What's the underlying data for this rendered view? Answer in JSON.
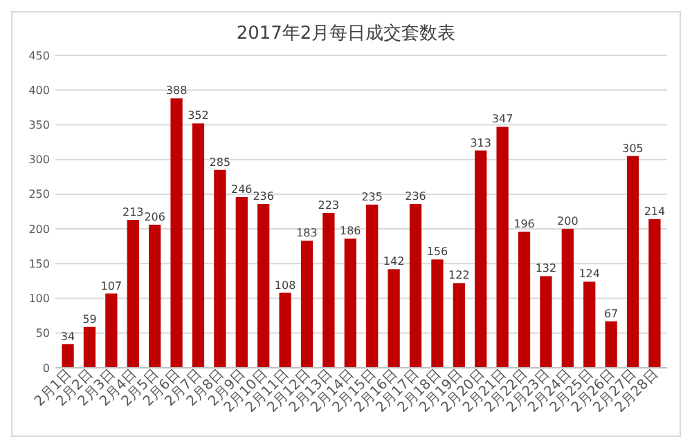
{
  "chart_data": {
    "type": "bar",
    "title": "2017年2月每日成交套数表",
    "categories": [
      "2月1日",
      "2月2日",
      "2月3日",
      "2月4日",
      "2月5日",
      "2月6日",
      "2月7日",
      "2月8日",
      "2月9日",
      "2月10日",
      "2月11日",
      "2月12日",
      "2月13日",
      "2月14日",
      "2月15日",
      "2月16日",
      "2月17日",
      "2月18日",
      "2月19日",
      "2月20日",
      "2月21日",
      "2月22日",
      "2月23日",
      "2月24日",
      "2月25日",
      "2月26日",
      "2月27日",
      "2月28日"
    ],
    "values": [
      34,
      59,
      107,
      213,
      206,
      388,
      352,
      285,
      246,
      236,
      108,
      183,
      223,
      186,
      235,
      142,
      236,
      156,
      122,
      313,
      347,
      196,
      132,
      200,
      124,
      67,
      305,
      214
    ],
    "color": "#c00000",
    "ylim": [
      0,
      450
    ],
    "yticks": [
      0,
      50,
      100,
      150,
      200,
      250,
      300,
      350,
      400,
      450
    ],
    "grid": "y",
    "data_labels": true
  }
}
